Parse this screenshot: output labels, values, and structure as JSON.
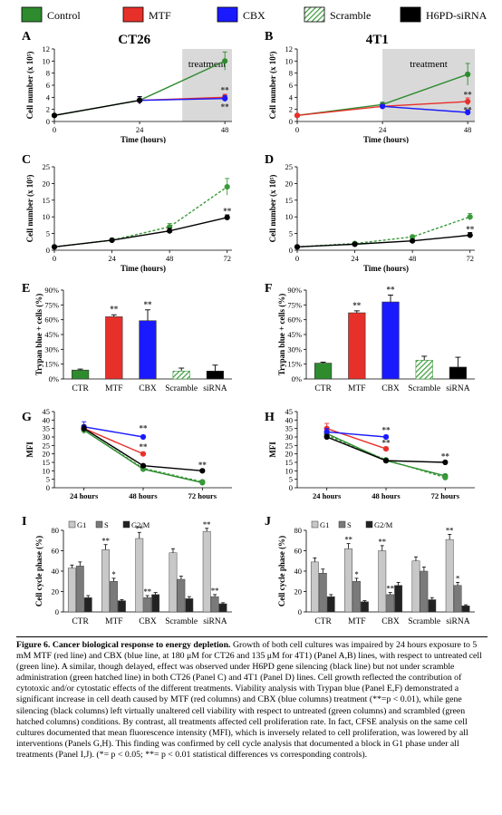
{
  "legend": {
    "items": [
      {
        "label": "Control",
        "color": "#2e8b2e",
        "pattern": "solid"
      },
      {
        "label": "MTF",
        "color": "#e8302a",
        "pattern": "solid"
      },
      {
        "label": "CBX",
        "color": "#1a1aff",
        "pattern": "solid"
      },
      {
        "label": "Scramble",
        "color": "#2e8b2e",
        "pattern": "hatched"
      },
      {
        "label": "H6PD-siRNA",
        "color": "#000000",
        "pattern": "solid"
      }
    ]
  },
  "colors": {
    "control": "#2e8b2e",
    "mtf": "#e8302a",
    "cbx": "#1a1aff",
    "scramble": "#3a9a3a",
    "sirna": "#000000",
    "g1": "#c8c8c8",
    "s": "#7a7a7a",
    "g2m": "#222222",
    "treatment": "#d9d9d9"
  },
  "panels": {
    "A": {
      "letter": "A",
      "title": "CT26",
      "annotation": "treatment",
      "ylabel": "Cell number (x 10⁵)",
      "xlabel": "Time (hours)"
    },
    "B": {
      "letter": "B",
      "title": "4T1",
      "annotation": "treatment",
      "ylabel": "Cell number (x 10⁵)",
      "xlabel": "Time (hours)"
    },
    "C": {
      "letter": "C",
      "ylabel": "Cell number (x 10⁵)",
      "xlabel": "Time (hours)"
    },
    "D": {
      "letter": "D",
      "ylabel": "Cell number (x 10⁵)",
      "xlabel": "Time (hours)"
    },
    "E": {
      "letter": "E",
      "ylabel": "Trypan blue + cells (%)"
    },
    "F": {
      "letter": "F",
      "ylabel": "Trypan blue + cells (%)"
    },
    "G": {
      "letter": "G",
      "ylabel": "MFI"
    },
    "H": {
      "letter": "H",
      "ylabel": "MFI"
    },
    "I": {
      "letter": "I",
      "ylabel": "Cell cycle phase (%)"
    },
    "J": {
      "letter": "J",
      "ylabel": "Cell cycle phase (%)"
    }
  },
  "chart_data": [
    {
      "id": "A",
      "type": "line",
      "x": [
        0,
        24,
        48
      ],
      "xticks": [
        "0",
        "24",
        "48"
      ],
      "xlim": [
        0,
        50
      ],
      "ylim": [
        0,
        12
      ],
      "yticks": [
        "0",
        "2",
        "4",
        "6",
        "8",
        "10",
        "12"
      ],
      "shade": [
        36,
        50
      ],
      "series": [
        {
          "name": "Control",
          "x": [
            0,
            24,
            48
          ],
          "values": [
            1.0,
            3.5,
            10.0
          ],
          "err": [
            0.1,
            0.6,
            1.5
          ],
          "style": "control"
        },
        {
          "name": "MTF",
          "x": [
            24,
            48
          ],
          "values": [
            3.5,
            4.0
          ],
          "err": [
            0.6,
            0.5
          ],
          "style": "mtf"
        },
        {
          "name": "CBX",
          "x": [
            24,
            48
          ],
          "values": [
            3.5,
            3.8
          ],
          "err": [
            0.6,
            0.5
          ],
          "style": "cbx"
        },
        {
          "name": "H6PD-siRNA",
          "x": [
            0,
            24
          ],
          "values": [
            1.0,
            3.5
          ],
          "err": [
            0.1,
            0.6
          ],
          "style": "sirna"
        }
      ],
      "marks": [
        {
          "x": 48,
          "y": 5.2,
          "text": "**"
        },
        {
          "x": 48,
          "y": 2.4,
          "text": "**"
        }
      ]
    },
    {
      "id": "B",
      "type": "line",
      "x": [
        0,
        24,
        48
      ],
      "xticks": [
        "0",
        "24",
        "48"
      ],
      "xlim": [
        0,
        50
      ],
      "ylim": [
        0,
        12
      ],
      "yticks": [
        "0",
        "2",
        "4",
        "6",
        "8",
        "10",
        "12"
      ],
      "shade": [
        24,
        50
      ],
      "series": [
        {
          "name": "Control",
          "x": [
            0,
            24,
            48
          ],
          "values": [
            1.0,
            2.8,
            7.8
          ],
          "err": [
            0.1,
            0.4,
            1.8
          ],
          "style": "control"
        },
        {
          "name": "MTF",
          "x": [
            0,
            24,
            48
          ],
          "values": [
            1.0,
            2.5,
            3.3
          ],
          "err": [
            0.1,
            0.3,
            0.6
          ],
          "style": "mtf"
        },
        {
          "name": "CBX",
          "x": [
            24,
            48
          ],
          "values": [
            2.5,
            1.5
          ],
          "err": [
            0.3,
            0.4
          ],
          "style": "cbx"
        }
      ],
      "marks": [
        {
          "x": 48,
          "y": 4.4,
          "text": "**"
        },
        {
          "x": 48,
          "y": 1.9,
          "text": "**"
        }
      ]
    },
    {
      "id": "C",
      "type": "line",
      "x": [
        0,
        24,
        48,
        72
      ],
      "xticks": [
        "0",
        "24",
        "48",
        "72"
      ],
      "xlim": [
        0,
        74
      ],
      "ylim": [
        0,
        25
      ],
      "yticks": [
        "0",
        "5",
        "10",
        "15",
        "20",
        "25"
      ],
      "series": [
        {
          "name": "Scramble",
          "x": [
            0,
            24,
            48,
            72
          ],
          "values": [
            1.0,
            3.0,
            7.0,
            19.0
          ],
          "err": [
            0.1,
            0.5,
            1.0,
            2.5
          ],
          "style": "scramble"
        },
        {
          "name": "H6PD-siRNA",
          "x": [
            0,
            24,
            48,
            72
          ],
          "values": [
            1.0,
            3.0,
            5.8,
            9.8
          ],
          "err": [
            0.1,
            0.5,
            0.8,
            0.8
          ],
          "style": "sirna"
        }
      ],
      "marks": [
        {
          "x": 72,
          "y": 11.7,
          "text": "**"
        }
      ]
    },
    {
      "id": "D",
      "type": "line",
      "x": [
        0,
        24,
        48,
        72
      ],
      "xticks": [
        "0",
        "24",
        "48",
        "72"
      ],
      "xlim": [
        0,
        74
      ],
      "ylim": [
        0,
        25
      ],
      "yticks": [
        "0",
        "5",
        "10",
        "15",
        "20",
        "25"
      ],
      "series": [
        {
          "name": "Scramble",
          "x": [
            0,
            24,
            48,
            72
          ],
          "values": [
            1.0,
            2.0,
            4.0,
            10.0
          ],
          "err": [
            0.1,
            0.3,
            0.4,
            1.0
          ],
          "style": "scramble"
        },
        {
          "name": "H6PD-siRNA",
          "x": [
            0,
            24,
            48,
            72
          ],
          "values": [
            1.0,
            1.8,
            2.8,
            4.5
          ],
          "err": [
            0.1,
            0.3,
            0.4,
            0.8
          ],
          "style": "sirna"
        }
      ],
      "marks": [
        {
          "x": 72,
          "y": 6.2,
          "text": "**"
        }
      ]
    },
    {
      "id": "E",
      "type": "bar",
      "categories": [
        "CTR",
        "MTF",
        "CBX",
        "Scramble",
        "siRNA"
      ],
      "values": [
        9,
        63,
        59,
        8,
        8
      ],
      "err": [
        1,
        2,
        11,
        3,
        6
      ],
      "styles": [
        "control",
        "mtf",
        "cbx",
        "scramble",
        "sirna"
      ],
      "ylim": [
        0,
        90
      ],
      "yticks": [
        "0%",
        "15%",
        "30%",
        "45%",
        "60%",
        "75%",
        "90%"
      ],
      "labels": [
        "",
        "**",
        "**",
        "",
        ""
      ]
    },
    {
      "id": "F",
      "type": "bar",
      "categories": [
        "CTR",
        "MTF",
        "CBX",
        "Scramble",
        "siRNA"
      ],
      "values": [
        16,
        67,
        78,
        19,
        12
      ],
      "err": [
        1,
        2,
        7,
        4,
        10
      ],
      "styles": [
        "control",
        "mtf",
        "cbx",
        "scramble",
        "sirna"
      ],
      "ylim": [
        0,
        90
      ],
      "yticks": [
        "0%",
        "15%",
        "30%",
        "45%",
        "60%",
        "75%",
        "90%"
      ],
      "labels": [
        "",
        "**",
        "**",
        "",
        ""
      ]
    },
    {
      "id": "G",
      "type": "line",
      "x": [
        0,
        1,
        2
      ],
      "xticks": [
        "24 hours",
        "48 hours",
        "72 hours"
      ],
      "xlim": [
        -0.5,
        2.5
      ],
      "ylim": [
        0,
        45
      ],
      "yticks": [
        "0",
        "5",
        "10",
        "15",
        "20",
        "25",
        "30",
        "35",
        "40",
        "45"
      ],
      "series": [
        {
          "name": "Control",
          "x": [
            0,
            1,
            2
          ],
          "values": [
            34,
            11,
            3
          ],
          "err": [
            2,
            0.8,
            0.6
          ],
          "style": "control"
        },
        {
          "name": "Scramble",
          "x": [
            0,
            1,
            2
          ],
          "values": [
            34,
            11.5,
            3.5
          ],
          "err": [
            2,
            0.8,
            0.6
          ],
          "style": "scramble"
        },
        {
          "name": "MTF",
          "x": [
            0,
            1
          ],
          "values": [
            35,
            20
          ],
          "err": [
            2,
            1
          ],
          "style": "mtf"
        },
        {
          "name": "CBX",
          "x": [
            0,
            1
          ],
          "values": [
            36,
            30
          ],
          "err": [
            3,
            1
          ],
          "style": "cbx"
        },
        {
          "name": "H6PD-siRNA",
          "x": [
            0,
            1,
            2
          ],
          "values": [
            35,
            13,
            10
          ],
          "err": [
            2,
            0.8,
            1
          ],
          "style": "sirna"
        }
      ],
      "marks": [
        {
          "x": 1,
          "y": 35,
          "text": "**"
        },
        {
          "x": 1,
          "y": 24,
          "text": "**"
        },
        {
          "x": 2,
          "y": 13.5,
          "text": "**"
        }
      ]
    },
    {
      "id": "H",
      "type": "line",
      "x": [
        0,
        1,
        2
      ],
      "xticks": [
        "24 hours",
        "48 hours",
        "72 hours"
      ],
      "xlim": [
        -0.5,
        2.5
      ],
      "ylim": [
        0,
        45
      ],
      "yticks": [
        "0",
        "5",
        "10",
        "15",
        "20",
        "25",
        "30",
        "35",
        "40",
        "45"
      ],
      "series": [
        {
          "name": "Control",
          "x": [
            0,
            1,
            2
          ],
          "values": [
            32,
            16,
            7
          ],
          "err": [
            2,
            0.8,
            0.6
          ],
          "style": "control"
        },
        {
          "name": "Scramble",
          "x": [
            0,
            1,
            2
          ],
          "values": [
            31,
            16.5,
            6
          ],
          "err": [
            2,
            0.8,
            0.6
          ],
          "style": "scramble"
        },
        {
          "name": "MTF",
          "x": [
            0,
            1
          ],
          "values": [
            35,
            23
          ],
          "err": [
            3,
            1
          ],
          "style": "mtf"
        },
        {
          "name": "CBX",
          "x": [
            0,
            1
          ],
          "values": [
            33,
            30
          ],
          "err": [
            2,
            1
          ],
          "style": "cbx"
        },
        {
          "name": "H6PD-siRNA",
          "x": [
            0,
            1,
            2
          ],
          "values": [
            30,
            16,
            15
          ],
          "err": [
            1.5,
            0.8,
            0.8
          ],
          "style": "sirna"
        }
      ],
      "marks": [
        {
          "x": 1,
          "y": 34,
          "text": "**"
        },
        {
          "x": 1,
          "y": 26.5,
          "text": "**"
        },
        {
          "x": 2,
          "y": 18.5,
          "text": "**"
        }
      ]
    },
    {
      "id": "I",
      "type": "bar",
      "grouped": true,
      "categories": [
        "CTR",
        "MTF",
        "CBX",
        "Scramble",
        "siRNA"
      ],
      "legend": [
        "G1",
        "S",
        "G2/M"
      ],
      "ylim": [
        0,
        80
      ],
      "yticks": [
        "0",
        "20",
        "40",
        "60",
        "80"
      ],
      "series": [
        {
          "name": "G1",
          "values": [
            43,
            61,
            72,
            58,
            79
          ],
          "err": [
            3,
            5,
            6,
            4,
            3
          ],
          "labels": [
            "",
            "**",
            "**",
            "",
            "**"
          ]
        },
        {
          "name": "S",
          "values": [
            45,
            30,
            14,
            32,
            15
          ],
          "err": [
            4,
            3,
            2,
            3,
            2
          ],
          "labels": [
            "",
            "*",
            "**",
            "",
            "**"
          ]
        },
        {
          "name": "G2/M",
          "values": [
            14,
            11,
            17,
            13,
            8
          ],
          "err": [
            2,
            1,
            2,
            2,
            1
          ],
          "labels": [
            "",
            "",
            "",
            "",
            ""
          ]
        }
      ]
    },
    {
      "id": "J",
      "type": "bar",
      "grouped": true,
      "categories": [
        "CTR",
        "MTF",
        "CBX",
        "Scramble",
        "siRNA"
      ],
      "legend": [
        "G1",
        "S",
        "G2/M"
      ],
      "ylim": [
        0,
        80
      ],
      "yticks": [
        "0",
        "20",
        "40",
        "60",
        "80"
      ],
      "series": [
        {
          "name": "G1",
          "values": [
            49,
            62,
            60,
            50,
            71
          ],
          "err": [
            4,
            5,
            5,
            4,
            5
          ],
          "labels": [
            "",
            "**",
            "**",
            "",
            "**"
          ]
        },
        {
          "name": "S",
          "values": [
            38,
            30,
            17,
            40,
            26
          ],
          "err": [
            4,
            3,
            2,
            4,
            3
          ],
          "labels": [
            "",
            "*",
            "**",
            "",
            "*"
          ]
        },
        {
          "name": "G2/M",
          "values": [
            15,
            10,
            26,
            12,
            6
          ],
          "err": [
            2,
            1,
            3,
            2,
            1
          ],
          "labels": [
            "",
            "",
            "",
            "",
            ""
          ]
        }
      ]
    }
  ],
  "caption": {
    "heading": "Figure 6.",
    "bold_title": "Cancer biological response to energy depletion.",
    "text": "Growth of both cell cultures was impaired by 24 hours exposure to 5 mM MTF (red line) and CBX (blue line, at 180 μM for CT26 and 135 μM for 4T1) (Panel A,B) lines, with respect to untreated cell (green line). A similar, though delayed, effect was observed under H6PD gene silencing (black line) but not under scramble administration (green hatched line) in both CT26 (Panel C) and 4T1 (Panel D) lines. Cell growth reflected the contribution of cytotoxic and/or cytostatic effects of the different treatments. Viability analysis with Trypan blue (Panel E,F) demonstrated a significant increase in cell death caused by MTF (red columns) and CBX (blue columns) treatment (**=p < 0.01), while gene silencing (black columns) left virtually unaltered cell viability with respect to untreated (green columns) and scrambled (green hatched columns) conditions. By contrast, all treatments affected cell proliferation rate. In fact, CFSE analysis on the same cell cultures documented that mean fluorescence intensity (MFI), which is inversely related to cell proliferation, was lowered by all interventions (Panels G,H). This finding was confirmed by cell cycle analysis that documented a block in G1 phase under all treatments (Panel I,J). (*= p < 0.05; **= p < 0.01 statistical differences vs corresponding controls)."
  }
}
